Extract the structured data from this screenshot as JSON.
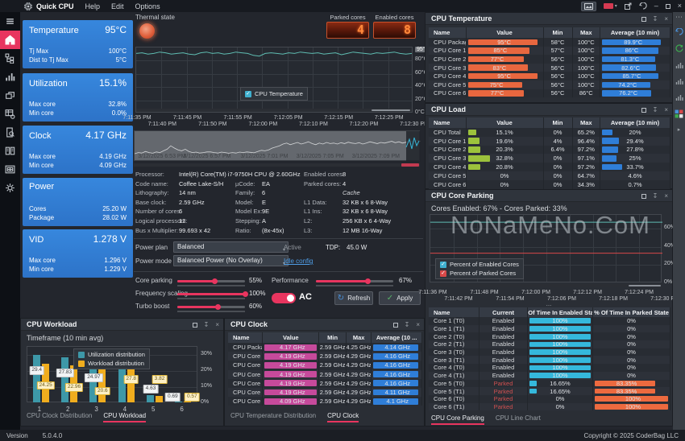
{
  "colors": {
    "accent": "#e8355f",
    "card_blue": "#3080d2",
    "temp_bar": "#e8673f",
    "avg_bar": "#2f7ed8",
    "load_bar": "#9cc23c",
    "clock_bar": "#c64a9b",
    "enabled_bar": "#35b8dc",
    "parked_bar": "#ed6a3f",
    "line_teal": "#5fbdb2",
    "line_red": "#d94848",
    "util_bar": "#3d98a8",
    "workload_bar": "#f0ad1e",
    "parked_text": "#cf5050",
    "enabled_text": "#d8dbde"
  },
  "titlebar": {
    "app": "Quick CPU",
    "menus": [
      "Help",
      "Edit",
      "Options"
    ]
  },
  "statusbar": {
    "version_label": "Version",
    "version": "5.0.4.0",
    "copyright": "Copyright © 2025 CoderBag LLC"
  },
  "sidebar": {
    "items": [
      {
        "icon": "menu-icon",
        "active": false
      },
      {
        "icon": "home-icon",
        "active": true
      },
      {
        "icon": "tree-icon",
        "active": false
      },
      {
        "icon": "bar-chart-icon",
        "active": false
      },
      {
        "icon": "layers-icon",
        "active": false
      },
      {
        "icon": "table-gear-icon",
        "active": false
      },
      {
        "icon": "doc-search-icon",
        "active": false
      },
      {
        "icon": "book-icon",
        "active": false
      },
      {
        "icon": "table-frame-icon",
        "active": false
      },
      {
        "icon": "gear-icon",
        "active": false
      }
    ]
  },
  "right_toolbar": {
    "items": [
      "more-dots-icon",
      "undo-icon",
      "refresh-icon",
      "bar-chart-icon",
      "bar-chart-icon",
      "bar-chart-icon",
      "grid-color-icon",
      "caret-icon"
    ]
  },
  "cards": [
    {
      "title": "Temperature",
      "value": "95°C",
      "rows": [
        [
          "Tj Max",
          "100°C"
        ],
        [
          "Dist to Tj Max",
          "5°C"
        ]
      ]
    },
    {
      "title": "Utilization",
      "value": "15.1%",
      "rows": [
        [
          "Max core",
          "32.8%"
        ],
        [
          "Min core",
          "0.0%"
        ]
      ]
    },
    {
      "title": "Clock",
      "value": "4.17 GHz",
      "rows": [
        [
          "Max core",
          "4.19 GHz"
        ],
        [
          "Min core",
          "4.09 GHz"
        ]
      ]
    },
    {
      "title": "Power",
      "value": "",
      "rows": [
        [
          "Cores",
          "25.20 W"
        ],
        [
          "Package",
          "28.02 W"
        ]
      ]
    },
    {
      "title": "VID",
      "value": "1.278 V",
      "rows": [
        [
          "Max core",
          "1.296 V"
        ],
        [
          "Min core",
          "1.229 V"
        ]
      ]
    }
  ],
  "thermal": {
    "label": "Thermal state"
  },
  "cores_display": {
    "parked_label": "Parked cores",
    "parked_value": "4",
    "enabled_label": "Enabled cores",
    "enabled_value": "8"
  },
  "temp_chart": {
    "type": "line",
    "legend": "CPU Temperature",
    "ylim": [
      0,
      100
    ],
    "current_tick": "95°C",
    "y_ticks": [
      {
        "label": "95°C",
        "v": 95,
        "boxed": true
      },
      {
        "label": "80°C",
        "v": 80
      },
      {
        "label": "60°C",
        "v": 60
      },
      {
        "label": "40°C",
        "v": 40
      },
      {
        "label": "20°C",
        "v": 20
      },
      {
        "label": "0°C",
        "v": 0
      }
    ],
    "x_ticks": [
      "7:11:35 PM",
      "7:11:40 PM",
      "7:11:45 PM",
      "7:11:50 PM",
      "7:11:55 PM",
      "7:12:00 PM",
      "7:12:05 PM",
      "7:12:10 PM",
      "7:12:15 PM",
      "7:12:20 PM",
      "7:12:25 PM",
      "7:12:30 PM"
    ],
    "series": [
      {
        "name": "CPU Temperature",
        "values": [
          91,
          92,
          90,
          91,
          93,
          92,
          90,
          91,
          92,
          90,
          89,
          92,
          93,
          91,
          92,
          90,
          91,
          93,
          92,
          91,
          88,
          87,
          91,
          92,
          91,
          90,
          92,
          91,
          93,
          92,
          91,
          92,
          90,
          91,
          92,
          89,
          91,
          93,
          92,
          91,
          90,
          92,
          91,
          92,
          93,
          91,
          90,
          91
        ]
      }
    ]
  },
  "overview": {
    "x_ticks": [
      "3/12/2025 6:53 PM",
      "3/12/2025 6:57 PM",
      "3/12/2025 7:01 PM",
      "3/12/2025 7:05 PM",
      "3/12/2025 7:09 PM"
    ],
    "points": [
      0.25,
      0.3,
      0.28,
      0.35,
      0.3,
      0.27,
      0.33,
      0.3,
      0.38,
      0.45,
      0.6,
      0.5,
      0.42,
      0.38,
      0.45,
      0.35,
      0.3,
      0.32,
      0.28,
      0.3,
      0.33,
      0.33,
      0.3,
      0.28,
      0.32,
      0.3,
      0.27,
      0.3,
      0.28,
      0.32,
      0.3,
      0.33,
      0.31,
      0.29,
      0.35,
      0.4,
      0.38,
      0.42,
      0.5,
      0.55,
      0.6,
      0.68,
      0.72,
      0.65,
      0.7,
      0.75,
      0.68,
      0.72,
      0.78,
      0.7,
      0.65,
      0.72,
      0.68,
      0.75,
      0.7,
      0.72,
      0.68,
      0.74,
      0.7,
      0.76,
      0.72,
      0.7,
      0.74,
      0.68,
      0.72,
      0.78,
      0.74,
      0.7,
      0.75,
      0.72,
      0.76,
      0.8,
      0.74,
      0.78,
      0.72,
      0.76,
      0.82,
      0.78,
      0.85,
      0.8
    ]
  },
  "processor_info": {
    "col1": [
      [
        "Processor:",
        "Intel(R) Core(TM) i7-9750H CPU @ 2.60GHz"
      ],
      [
        "Code name:",
        "Coffee Lake-S/H"
      ],
      [
        "Lithography:",
        "14 nm"
      ],
      [
        "Base clock:",
        "2.59 GHz"
      ],
      [
        "Number of cores:",
        "6"
      ],
      [
        "Logical processors:",
        "12"
      ],
      [
        "Bus x Multiplier:",
        "99.693 x 42"
      ]
    ],
    "col2": [
      [
        "µCode:",
        "EA"
      ],
      [
        "Family:",
        "6"
      ],
      [
        "Model:",
        "E"
      ],
      [
        "Model Ex:",
        "9E"
      ],
      [
        "Stepping:",
        "A"
      ],
      [
        "Ratio:",
        "(8x-45x)"
      ]
    ],
    "col3": [
      [
        "Enabled cores:",
        "8"
      ],
      [
        "Parked cores:",
        "4"
      ],
      [
        "",
        "Cache",
        "i"
      ],
      [
        "L1 Data:",
        "32 KB x 6  8-Way"
      ],
      [
        "L1 Ins:",
        "32 KB x 6  8-Way"
      ],
      [
        "L2:",
        "256 KB x 6  4-Way"
      ],
      [
        "L3:",
        "12 MB  16-Way"
      ]
    ]
  },
  "power": {
    "plan_label": "Power plan",
    "plan_value": "Balanced",
    "plan_status": "Active",
    "tdp_label": "TDP:",
    "tdp_value": "45.0 W",
    "mode_label": "Power mode",
    "mode_value": "Balanced Power (No Overlay)",
    "idle_link": "Idle config"
  },
  "sliders": {
    "left": [
      {
        "label": "Core parking",
        "pct": 55,
        "text": "55%"
      },
      {
        "label": "Frequency scaling",
        "pct": 100,
        "text": "100%"
      },
      {
        "label": "Turbo boost",
        "pct": 60,
        "text": "60%"
      }
    ],
    "right": [
      {
        "label": "Performance",
        "pct": 67,
        "text": "67%"
      }
    ],
    "ac_label": "AC",
    "refresh_label": "Refresh",
    "apply_label": "Apply"
  },
  "workload_panel": {
    "title": "CPU Workload",
    "subtitle": "Timeframe (10 min avg)",
    "chart_data": {
      "type": "bar",
      "categories": [
        "1",
        "2",
        "3",
        "4",
        "5",
        "6"
      ],
      "ylim": [
        0,
        35
      ],
      "y_ticks": [
        {
          "label": "30%",
          "v": 30
        },
        {
          "label": "20%",
          "v": 20
        },
        {
          "label": "10%",
          "v": 10
        },
        {
          "label": "0%",
          "v": 0
        }
      ],
      "series": [
        {
          "name": "Utilization distribution",
          "values": [
            29.4,
            27.83,
            24.97,
            33.7,
            4.63,
            0.69
          ],
          "labels": [
            "29.4",
            "27.83",
            "24.97",
            "33.7",
            "4.63",
            "0.69"
          ]
        },
        {
          "name": "Workload distribution",
          "values": [
            24.25,
            22.96,
            20.6,
            27.8,
            3.82,
            0.57
          ],
          "labels": [
            "24.25",
            "22.96",
            "20.6",
            "27.8",
            "3.82",
            "0.57"
          ]
        }
      ]
    },
    "tabs": [
      {
        "label": "CPU Clock Distribution",
        "active": false
      },
      {
        "label": "CPU Workload",
        "active": true
      }
    ]
  },
  "clock_panel": {
    "title": "CPU Clock",
    "headers": [
      "Name",
      "Value",
      "Min",
      "Max",
      "Average (10 ..."
    ],
    "rows": [
      [
        "CPU Package",
        "4.17 GHz",
        "2.59 GHz",
        "4.25 GHz",
        "4.14 GHz"
      ],
      [
        "CPU Core 1:",
        "4.19 GHz",
        "2.59 GHz",
        "4.29 GHz",
        "4.16 GHz"
      ],
      [
        "CPU Core 2:",
        "4.19 GHz",
        "2.59 GHz",
        "4.29 GHz",
        "4.16 GHz"
      ],
      [
        "CPU Core 3:",
        "4.19 GHz",
        "2.59 GHz",
        "4.29 GHz",
        "4.16 GHz"
      ],
      [
        "CPU Core 4:",
        "4.19 GHz",
        "2.59 GHz",
        "4.29 GHz",
        "4.16 GHz"
      ],
      [
        "CPU Core 5:",
        "4.19 GHz",
        "2.59 GHz",
        "4.29 GHz",
        "4.11 GHz"
      ],
      [
        "CPU Core 6:",
        "4.09 GHz",
        "2.59 GHz",
        "4.29 GHz",
        "4.1 GHz"
      ]
    ],
    "tabs": [
      {
        "label": "CPU Temperature Distribution",
        "active": false
      },
      {
        "label": "CPU Clock",
        "active": true
      }
    ]
  },
  "temp_panel": {
    "title": "CPU Temperature",
    "headers": [
      "Name",
      "Value",
      "Min",
      "Max",
      "Average (10 min)"
    ],
    "rows": [
      [
        "CPU Package",
        "95°C",
        95,
        "58°C",
        "100°C",
        "89.9°C",
        90
      ],
      [
        "CPU Core 1:",
        "85°C",
        85,
        "57°C",
        "100°C",
        "86°C",
        86
      ],
      [
        "CPU Core 2:",
        "77°C",
        77,
        "56°C",
        "100°C",
        "81.3°C",
        81
      ],
      [
        "CPU Core 3:",
        "83°C",
        83,
        "56°C",
        "100°C",
        "82.6°C",
        83
      ],
      [
        "CPU Core 4:",
        "95°C",
        95,
        "56°C",
        "100°C",
        "85.7°C",
        86
      ],
      [
        "CPU Core 5:",
        "75°C",
        75,
        "56°C",
        "100°C",
        "74.2°C",
        74
      ],
      [
        "CPU Core 6:",
        "77°C",
        77,
        "56°C",
        "86°C",
        "76.2°C",
        76
      ]
    ]
  },
  "load_panel": {
    "title": "CPU Load",
    "headers": [
      "Name",
      "Value",
      "Min",
      "Max",
      "Average (10 min)"
    ],
    "rows": [
      [
        "CPU Total",
        "15.1%",
        15.1,
        "0%",
        "65.2%",
        "20%",
        20
      ],
      [
        "CPU Core 1:",
        "19.6%",
        19.6,
        "4%",
        "96.4%",
        "29.4%",
        29.4
      ],
      [
        "CPU Core 2:",
        "20.3%",
        20.3,
        "6.4%",
        "97.2%",
        "27.8%",
        27.8
      ],
      [
        "CPU Core 3:",
        "32.8%",
        32.8,
        "0%",
        "97.1%",
        "25%",
        25
      ],
      [
        "CPU Core 4:",
        "20.8%",
        20.8,
        "0%",
        "97.2%",
        "33.7%",
        33.7
      ],
      [
        "CPU Core 5:",
        "0%",
        0,
        "0%",
        "64.7%",
        "4.6%",
        4.6
      ],
      [
        "CPU Core 6:",
        "0%",
        0,
        "0%",
        "34.3%",
        "0.7%",
        0.7
      ]
    ]
  },
  "parking_panel": {
    "title": "CPU Core Parking",
    "subtitle": "Cores Enabled: 67% - Cores Parked: 33%",
    "chart_data": {
      "type": "line",
      "ylim": [
        0,
        75
      ],
      "y_ticks": [
        {
          "label": "60%",
          "v": 60
        },
        {
          "label": "40%",
          "v": 40
        },
        {
          "label": "20%",
          "v": 20
        },
        {
          "label": "0%",
          "v": 0
        }
      ],
      "x_ticks": [
        "7:11:36 PM",
        "7:11:42 PM",
        "7:11:48 PM",
        "7:11:54 PM",
        "7:12:00 PM",
        "7:12:06 PM",
        "7:12:12 PM",
        "7:12:18 PM",
        "7:12:24 PM",
        "7:12:30 PM"
      ],
      "series": [
        {
          "name": "Percent of Enabled Cores",
          "values": [
            67,
            67
          ]
        },
        {
          "name": "Percent of Parked Cores",
          "values": [
            33,
            33
          ]
        }
      ]
    },
    "table": {
      "headers": [
        "Name",
        "Current",
        "% Of Time In Enabled State",
        "% Of Time In Parked State"
      ],
      "rows": [
        [
          "Core 1 (T0)",
          "Enabled",
          "100%",
          100,
          "0%",
          0
        ],
        [
          "Core 1 (T1)",
          "Enabled",
          "100%",
          100,
          "0%",
          0
        ],
        [
          "Core 2 (T0)",
          "Enabled",
          "100%",
          100,
          "0%",
          0
        ],
        [
          "Core 2 (T1)",
          "Enabled",
          "100%",
          100,
          "0%",
          0
        ],
        [
          "Core 3 (T0)",
          "Enabled",
          "100%",
          100,
          "0%",
          0
        ],
        [
          "Core 3 (T1)",
          "Enabled",
          "100%",
          100,
          "0%",
          0
        ],
        [
          "Core 4 (T0)",
          "Enabled",
          "100%",
          100,
          "0%",
          0
        ],
        [
          "Core 4 (T1)",
          "Enabled",
          "100%",
          100,
          "0%",
          0
        ],
        [
          "Core 5 (T0)",
          "Parked",
          "16.65%",
          16.65,
          "83.35%",
          83.35
        ],
        [
          "Core 5 (T1)",
          "Parked",
          "16.65%",
          16.65,
          "83.35%",
          83.35
        ],
        [
          "Core 6 (T0)",
          "Parked",
          "0%",
          0,
          "100%",
          100
        ],
        [
          "Core 6 (T1)",
          "Parked",
          "0%",
          0,
          "100%",
          100
        ]
      ]
    },
    "tabs": [
      {
        "label": "CPU Core Parking",
        "active": true
      },
      {
        "label": "CPU Line Chart",
        "active": false
      }
    ],
    "splitter": "..."
  },
  "watermark": "NoNaMeNo.CoM"
}
